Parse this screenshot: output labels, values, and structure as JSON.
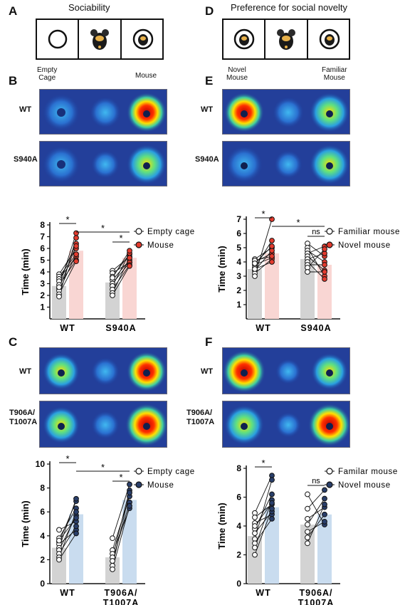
{
  "letters": {
    "A": "A",
    "B": "B",
    "C": "C",
    "D": "D",
    "E": "E",
    "F": "F"
  },
  "titles": {
    "A": "Sociability",
    "D": "Preference for social novelty"
  },
  "captions": {
    "A_left": "Empty\nCage",
    "A_right": "Mouse",
    "D_left": "Novel\nMouse",
    "D_right": "Familiar\nMouse"
  },
  "rows": {
    "B1": "WT",
    "B2": "S940A",
    "E1": "WT",
    "E2": "S940A",
    "C1": "WT",
    "C2": "T906A/\nT1007A",
    "F1": "WT",
    "F2": "T906A/\nT1007A"
  },
  "chart_data": [
    {
      "id": "B",
      "type": "bar",
      "ylabel": "Time (min)",
      "ylim": [
        0,
        8
      ],
      "yticks": [
        1,
        2,
        3,
        4,
        5,
        6,
        7,
        8
      ],
      "categories": [
        "WT",
        "S940A"
      ],
      "series": [
        {
          "name": "Empty cage",
          "values": [
            2.8,
            3.1
          ],
          "color": "#d3d3d3",
          "marker": "#ffffff"
        },
        {
          "name": "Mouse",
          "values": [
            5.8,
            5.2
          ],
          "color": "#f9d6d3",
          "marker": "#e43b2e"
        }
      ],
      "points": [
        [
          [
            3.8,
            6.0
          ],
          [
            3.6,
            5.5
          ],
          [
            3.4,
            5.3
          ],
          [
            3.2,
            6.4
          ],
          [
            2.9,
            5.0
          ],
          [
            2.6,
            6.2
          ],
          [
            2.4,
            5.5
          ],
          [
            2.1,
            4.9
          ],
          [
            1.9,
            6.9
          ],
          [
            2.7,
            7.3
          ]
        ],
        [
          [
            4.1,
            5.3
          ],
          [
            3.9,
            4.8
          ],
          [
            3.6,
            5.5
          ],
          [
            3.3,
            5.0
          ],
          [
            3.0,
            4.8
          ],
          [
            2.8,
            5.6
          ],
          [
            2.5,
            4.6
          ],
          [
            2.2,
            5.2
          ],
          [
            3.5,
            5.8
          ],
          [
            2.0,
            4.5
          ]
        ]
      ],
      "sig": [
        {
          "from": 0,
          "to": 1,
          "label": "*"
        },
        {
          "from": 2,
          "to": 3,
          "label": "*"
        },
        {
          "from": 1,
          "to": 3,
          "label": "*"
        }
      ]
    },
    {
      "id": "E",
      "type": "bar",
      "ylabel": "Time (min)",
      "ylim": [
        0,
        7
      ],
      "yticks": [
        1,
        2,
        3,
        4,
        5,
        6,
        7
      ],
      "categories": [
        "WT",
        "S940A"
      ],
      "series": [
        {
          "name": "Familiar mouse",
          "values": [
            3.5,
            4.2
          ],
          "color": "#d3d3d3",
          "marker": "#ffffff"
        },
        {
          "name": "Novel mouse",
          "values": [
            4.6,
            3.8
          ],
          "color": "#f9d6d3",
          "marker": "#e43b2e"
        }
      ],
      "points": [
        [
          [
            4.2,
            5.0
          ],
          [
            4.0,
            4.6
          ],
          [
            3.8,
            4.3
          ],
          [
            3.6,
            5.5
          ],
          [
            3.4,
            4.8
          ],
          [
            3.2,
            4.2
          ],
          [
            3.0,
            7.0
          ],
          [
            4.1,
            4.4
          ],
          [
            3.9,
            5.1
          ],
          [
            3.5,
            4.0
          ]
        ],
        [
          [
            5.3,
            4.4
          ],
          [
            5.0,
            3.0
          ],
          [
            4.8,
            4.0
          ],
          [
            4.6,
            5.1
          ],
          [
            4.4,
            3.4
          ],
          [
            4.2,
            4.6
          ],
          [
            4.0,
            2.8
          ],
          [
            3.8,
            3.8
          ],
          [
            3.6,
            4.9
          ],
          [
            3.3,
            3.3
          ]
        ]
      ],
      "sig": [
        {
          "from": 0,
          "to": 1,
          "label": "*"
        },
        {
          "from": 2,
          "to": 3,
          "label": "ns"
        },
        {
          "from": 1,
          "to": 3,
          "label": "*"
        }
      ]
    },
    {
      "id": "C",
      "type": "bar",
      "ylabel": "Time (min)",
      "ylim": [
        0,
        10
      ],
      "yticks": [
        0,
        2,
        4,
        6,
        8,
        10
      ],
      "categories": [
        "WT",
        "T906A/\nT1007A"
      ],
      "series": [
        {
          "name": "Empty cage",
          "values": [
            3.0,
            2.2
          ],
          "color": "#d3d3d3",
          "marker": "#ffffff"
        },
        {
          "name": "Mouse",
          "values": [
            5.8,
            7.0
          ],
          "color": "#c9dcef",
          "marker": "#2a3f6b"
        }
      ],
      "points": [
        [
          [
            4.5,
            5.2
          ],
          [
            3.8,
            6.3
          ],
          [
            3.5,
            6.9
          ],
          [
            3.3,
            4.5
          ],
          [
            3.0,
            7.1
          ],
          [
            2.8,
            5.7
          ],
          [
            2.5,
            4.8
          ],
          [
            2.2,
            6.0
          ],
          [
            2.0,
            4.2
          ],
          [
            3.6,
            5.5
          ]
        ],
        [
          [
            3.8,
            8.3
          ],
          [
            2.8,
            7.3
          ],
          [
            2.5,
            6.3
          ],
          [
            2.2,
            7.8
          ],
          [
            1.9,
            6.8
          ],
          [
            1.5,
            7.6
          ],
          [
            1.2,
            6.5
          ]
        ]
      ],
      "sig": [
        {
          "from": 0,
          "to": 1,
          "label": "*"
        },
        {
          "from": 2,
          "to": 3,
          "label": "*"
        },
        {
          "from": 1,
          "to": 3,
          "label": "*"
        }
      ]
    },
    {
      "id": "F",
      "type": "bar",
      "ylabel": "Time (min)",
      "ylim": [
        0,
        8
      ],
      "yticks": [
        0,
        2,
        4,
        6,
        8
      ],
      "categories": [
        "WT",
        "T906A/\nT1007A"
      ],
      "series": [
        {
          "name": "Familar mouse",
          "values": [
            3.3,
            4.1
          ],
          "color": "#d3d3d3",
          "marker": "#ffffff"
        },
        {
          "name": "Novel mouse",
          "values": [
            5.3,
            4.8
          ],
          "color": "#c9dcef",
          "marker": "#2a3f6b"
        }
      ],
      "points": [
        [
          [
            4.9,
            7.5
          ],
          [
            4.6,
            5.5
          ],
          [
            4.2,
            4.8
          ],
          [
            3.8,
            6.2
          ],
          [
            3.5,
            5.0
          ],
          [
            3.1,
            7.2
          ],
          [
            2.8,
            4.5
          ],
          [
            2.5,
            5.8
          ],
          [
            2.0,
            5.2
          ],
          [
            4.0,
            5.6
          ]
        ],
        [
          [
            6.2,
            4.1
          ],
          [
            5.2,
            6.5
          ],
          [
            4.5,
            5.3
          ],
          [
            4.1,
            5.9
          ],
          [
            3.6,
            4.3
          ],
          [
            3.2,
            4.8
          ],
          [
            2.8,
            5.5
          ]
        ]
      ],
      "sig": [
        {
          "from": 0,
          "to": 1,
          "label": "*"
        },
        {
          "from": 2,
          "to": 3,
          "label": "ns"
        }
      ]
    }
  ]
}
